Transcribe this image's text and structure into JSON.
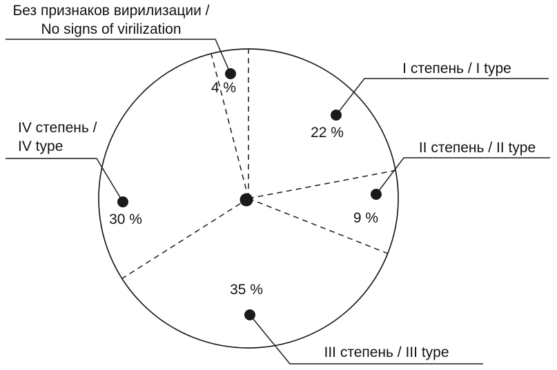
{
  "chart_data": {
    "type": "pie",
    "title": "",
    "unit": "%",
    "categories": [
      "Без признаков вирилизации / No signs of virilization",
      "I степень / I type",
      "II степень / II type",
      "III степень / III type",
      "IV степень / IV type"
    ],
    "values": [
      4,
      22,
      9,
      35,
      30
    ],
    "value_labels": [
      "4 %",
      "22 %",
      "9 %",
      "35 %",
      "30 %"
    ],
    "legend_position": "external-callouts-around",
    "style_hints": {
      "fill": "none",
      "outline": "solid-circle",
      "sector_dividers": "dashed-radial-lines",
      "data_markers": "filled-black-dots",
      "first_divider_at_deg_from_top": 0
    }
  },
  "callouts": {
    "no_virilization": {
      "lines": [
        "Без признаков вирилизации /",
        "No signs of virilization"
      ],
      "pct": "4 %"
    },
    "type_1": {
      "lines": [
        "I степень / I type"
      ],
      "pct": "22 %"
    },
    "type_2": {
      "lines": [
        "II степень / II type"
      ],
      "pct": "9 %"
    },
    "type_3": {
      "lines": [
        "III степень / III type"
      ],
      "pct": "35 %"
    },
    "type_4": {
      "lines": [
        "IV степень /",
        "IV type"
      ],
      "pct": "30 %"
    }
  },
  "colors": {
    "ink": "#1a1a1a",
    "background": "#ffffff"
  }
}
